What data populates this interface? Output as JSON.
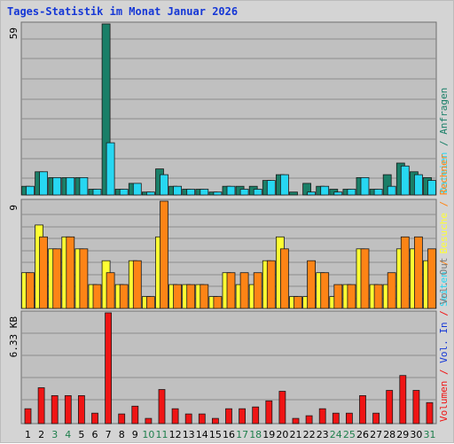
{
  "title": "Tages-Statistik im Monat Januar 2026",
  "colors": {
    "panel": "#c0c0c0",
    "grid": "#8c8c8c",
    "anfragen": "#1a7f68",
    "dateien": "#27d7f2",
    "seiten": "#27d7f2",
    "besuche": "#ffff33",
    "rechner": "#fd8416",
    "volumen": "#f01414",
    "weekday_label": "#000000",
    "weekend_label": "#1e7f4c"
  },
  "chart_data": [
    {
      "type": "bar",
      "panel": "hits",
      "axis_max_label": "59",
      "ylim": [
        0,
        59
      ],
      "categories": [
        "1",
        "2",
        "3",
        "4",
        "5",
        "6",
        "7",
        "8",
        "9",
        "10",
        "11",
        "12",
        "13",
        "14",
        "15",
        "16",
        "17",
        "18",
        "19",
        "20",
        "21",
        "22",
        "23",
        "24",
        "25",
        "26",
        "27",
        "28",
        "29",
        "30",
        "31"
      ],
      "series": [
        {
          "name": "Anfragen",
          "values": [
            3,
            8,
            6,
            6,
            6,
            2,
            59,
            2,
            4,
            1,
            9,
            3,
            2,
            2,
            1,
            3,
            3,
            3,
            5,
            7,
            1,
            4,
            3,
            2,
            2,
            6,
            2,
            7,
            11,
            8,
            6
          ]
        },
        {
          "name": "Dateien",
          "values": [
            3,
            8,
            6,
            6,
            6,
            2,
            18,
            2,
            4,
            1,
            7,
            3,
            2,
            2,
            1,
            3,
            2,
            2,
            5,
            7,
            0,
            1,
            3,
            1,
            2,
            6,
            2,
            3,
            10,
            7,
            5
          ]
        }
      ],
      "right_label_parts": [
        {
          "text": "Dateien",
          "color_key": "dateien"
        },
        {
          "text": " / ",
          "color_key": "anfragen"
        },
        {
          "text": "Anfragen",
          "color_key": "anfragen"
        }
      ]
    },
    {
      "type": "bar",
      "panel": "visits",
      "axis_max_label": "9",
      "ylim": [
        0,
        9
      ],
      "categories": [
        "1",
        "2",
        "3",
        "4",
        "5",
        "6",
        "7",
        "8",
        "9",
        "10",
        "11",
        "12",
        "13",
        "14",
        "15",
        "16",
        "17",
        "18",
        "19",
        "20",
        "21",
        "22",
        "23",
        "24",
        "25",
        "26",
        "27",
        "28",
        "29",
        "30",
        "31"
      ],
      "series": [
        {
          "name": "Besuche",
          "values": [
            3,
            7,
            5,
            6,
            5,
            2,
            4,
            2,
            4,
            1,
            6,
            2,
            2,
            2,
            1,
            3,
            2,
            2,
            4,
            6,
            1,
            1,
            3,
            1,
            2,
            5,
            2,
            2,
            5,
            5,
            4
          ]
        },
        {
          "name": "Rechner",
          "values": [
            3,
            6,
            5,
            6,
            5,
            2,
            3,
            2,
            4,
            1,
            9,
            2,
            2,
            2,
            1,
            3,
            3,
            3,
            4,
            5,
            1,
            4,
            3,
            2,
            2,
            5,
            2,
            3,
            6,
            6,
            5
          ]
        }
      ],
      "right_label_parts": [
        {
          "text": "Seiten",
          "color_key": "seiten"
        },
        {
          "text": " / ",
          "color_key": "rechner"
        },
        {
          "text": "Besuche",
          "color_key": "besuche"
        },
        {
          "text": " / ",
          "color_key": "rechner"
        },
        {
          "text": "Rechner",
          "color_key": "rechner"
        }
      ]
    },
    {
      "type": "bar",
      "panel": "volume",
      "axis_max_label": "6.33 KB",
      "ylim": [
        0,
        6.33
      ],
      "categories": [
        "1",
        "2",
        "3",
        "4",
        "5",
        "6",
        "7",
        "8",
        "9",
        "10",
        "11",
        "12",
        "13",
        "14",
        "15",
        "16",
        "17",
        "18",
        "19",
        "20",
        "21",
        "22",
        "23",
        "24",
        "25",
        "26",
        "27",
        "28",
        "29",
        "30",
        "31"
      ],
      "series": [
        {
          "name": "Volumen",
          "values": [
            0.85,
            2.05,
            1.6,
            1.6,
            1.6,
            0.6,
            6.33,
            0.55,
            1.0,
            0.3,
            1.95,
            0.85,
            0.55,
            0.55,
            0.3,
            0.85,
            0.85,
            0.95,
            1.3,
            1.85,
            0.3,
            0.45,
            0.85,
            0.6,
            0.6,
            1.6,
            0.6,
            1.9,
            2.75,
            1.9,
            1.2
          ]
        }
      ],
      "right_label_parts": [
        {
          "text": "Volumen",
          "color_key": "volumen"
        },
        {
          "text": " / ",
          "color_key": "volumen"
        },
        {
          "text": "Vol. In",
          "color_key": "seiten_blue"
        },
        {
          "text": " / ",
          "color_key": "volumen"
        },
        {
          "text": "Vol. Out",
          "color_key": "grey"
        }
      ]
    }
  ],
  "weekend_days": [
    "3",
    "4",
    "10",
    "11",
    "17",
    "18",
    "24",
    "25",
    "31"
  ]
}
